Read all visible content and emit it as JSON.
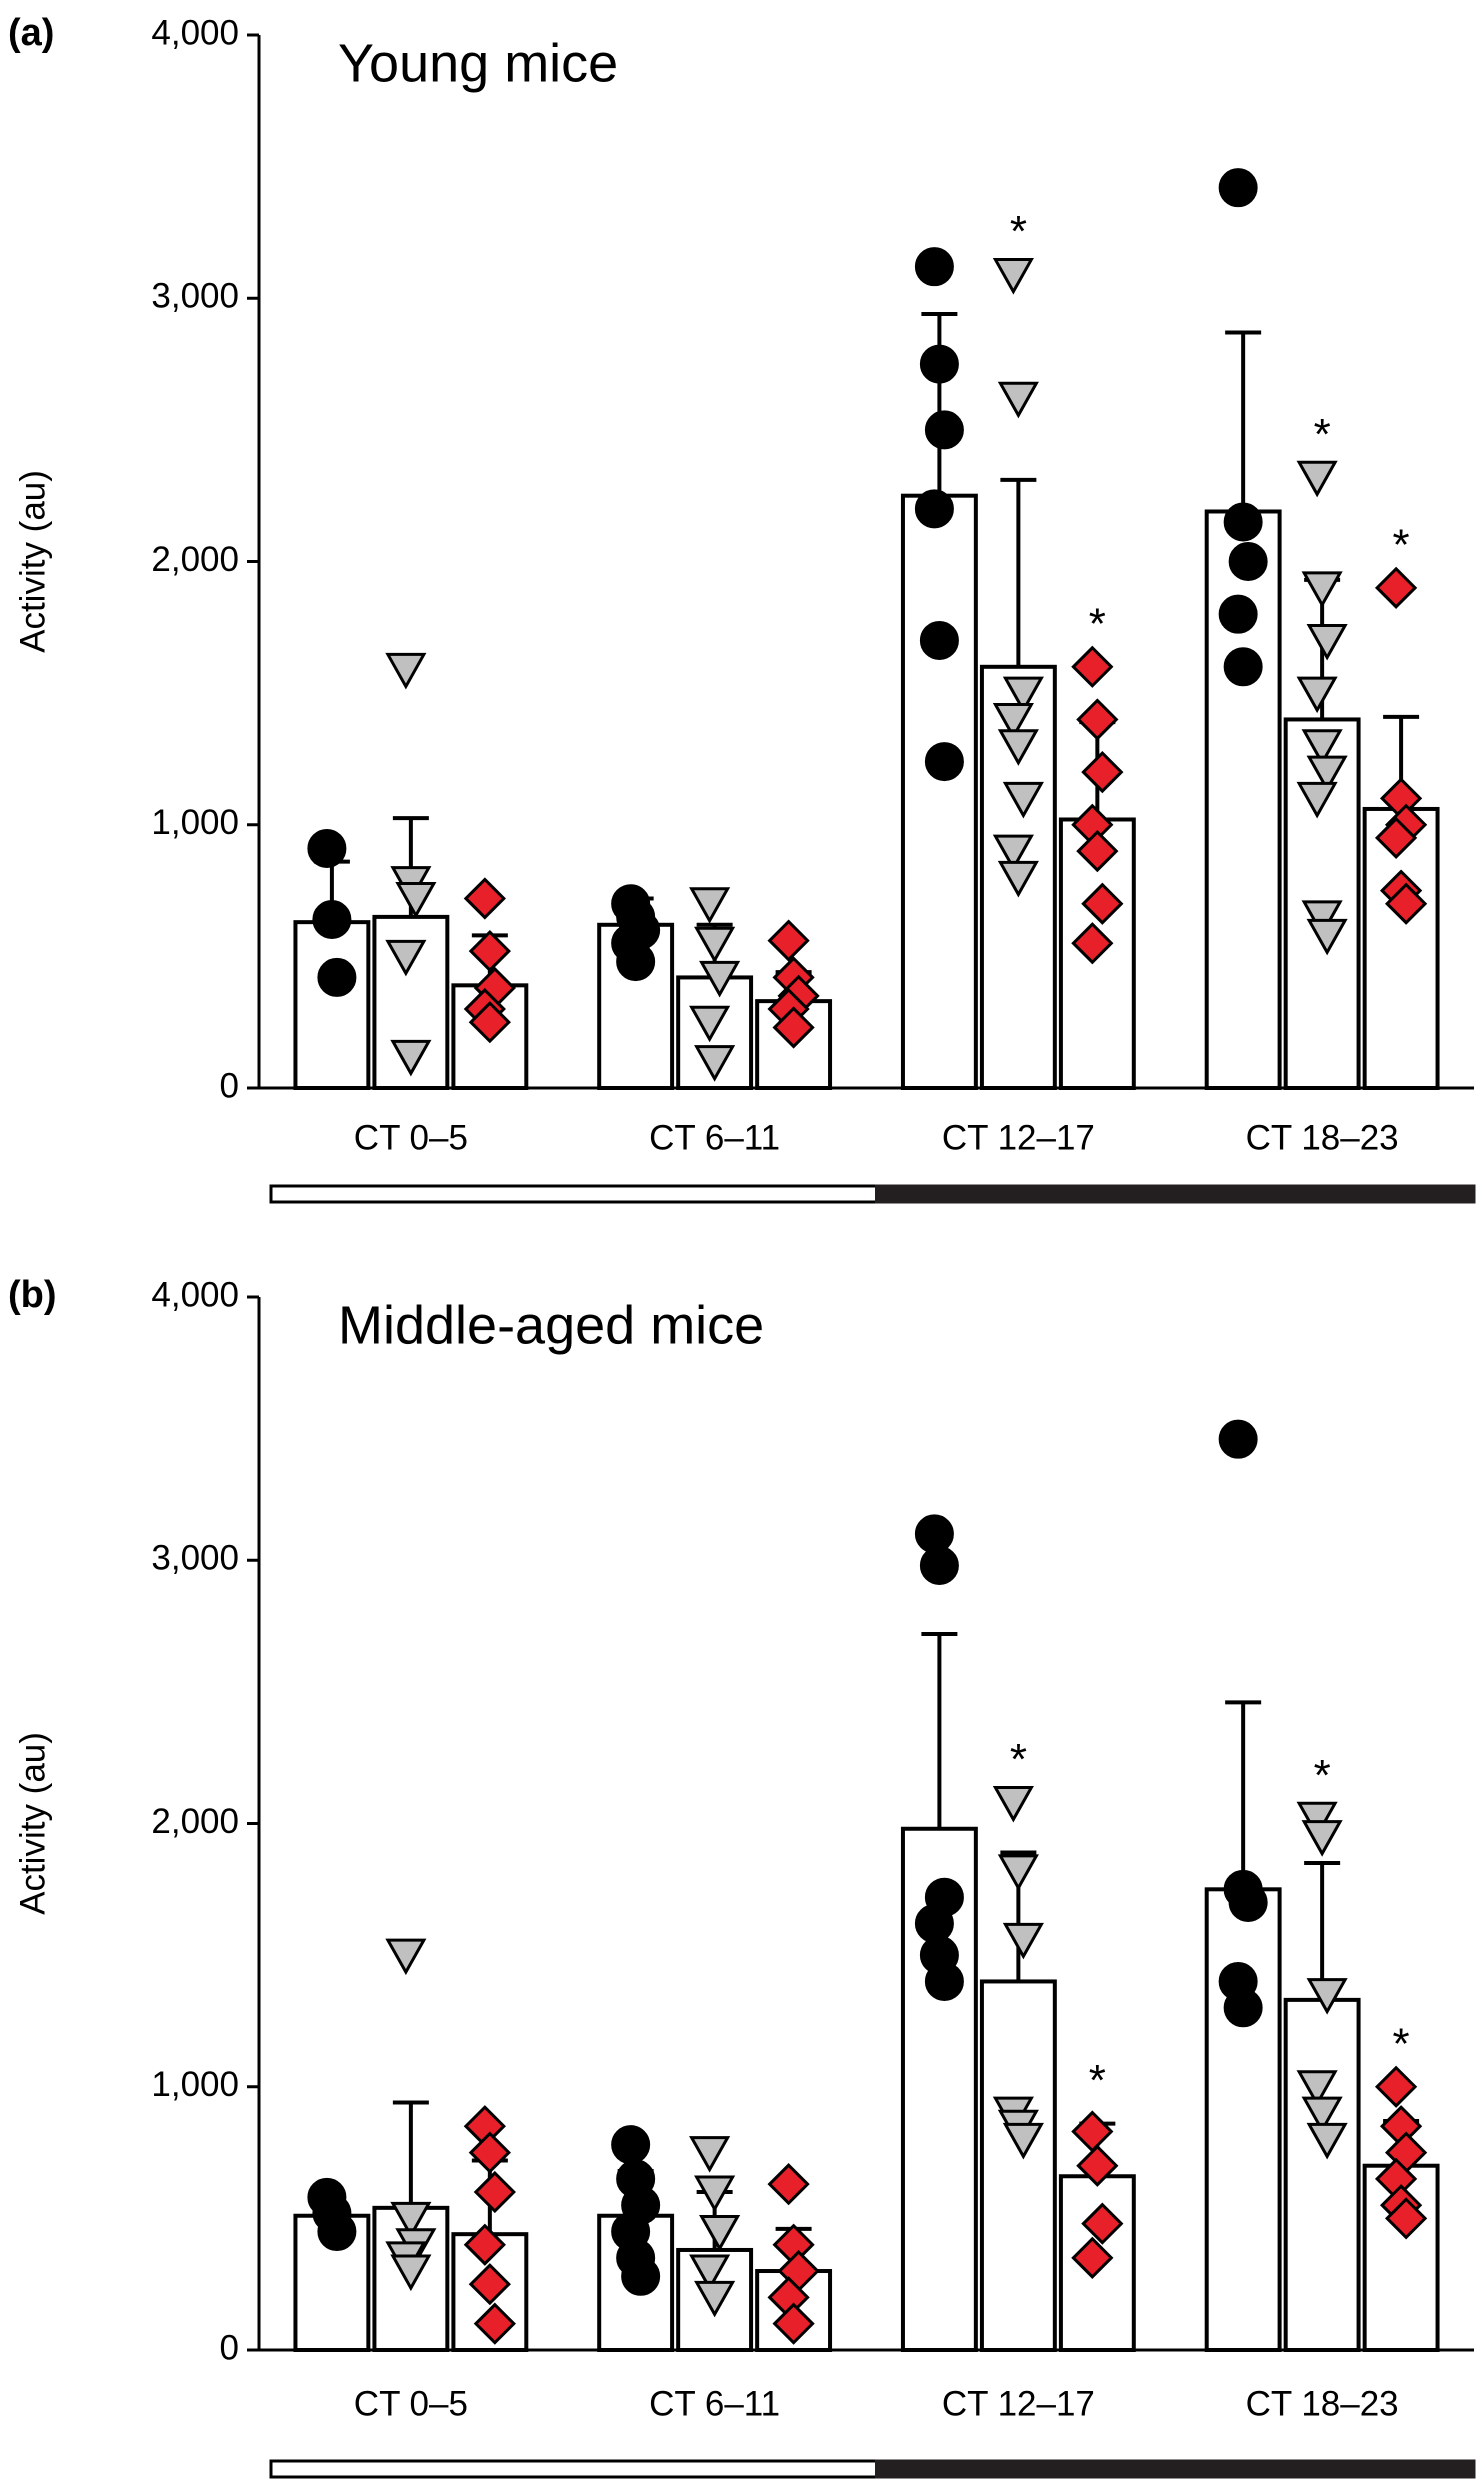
{
  "chart_data": [
    {
      "type": "bar",
      "panel": "(a)",
      "title": "Young mice",
      "ylabel": "Activity (au)",
      "categories": [
        "CT 0–5",
        "CT 6–11",
        "CT 12–17",
        "CT 18–23"
      ],
      "ylim": [
        0,
        4000
      ],
      "yticks": [
        0,
        {
          "value": 1000,
          "label": "1,000"
        },
        {
          "value": 2000,
          "label": "2,000"
        },
        {
          "value": 3000,
          "label": "3,000"
        },
        {
          "value": 4000,
          "label": "4,000"
        }
      ],
      "series": [
        {
          "color": "#000000",
          "marker": "circle",
          "values": [
            630,
            620,
            2250,
            2190
          ],
          "errors": [
            230,
            100,
            690,
            680
          ],
          "points": [
            [
              910,
              640,
              420
            ],
            [
              700,
              650,
              600,
              550,
              480
            ],
            [
              3120,
              2750,
              2500,
              2200,
              1700,
              1240
            ],
            [
              3420,
              2150,
              2000,
              1800,
              1600
            ]
          ],
          "significance": [
            null,
            null,
            null,
            null
          ]
        },
        {
          "color": "#c0c0c0",
          "marker": "triangle",
          "values": [
            650,
            420,
            1600,
            1400
          ],
          "errors": [
            375,
            200,
            710,
            530
          ],
          "points": [
            [
              1590,
              780,
              720,
              500,
              120
            ],
            [
              700,
              550,
              420,
              250,
              100
            ],
            [
              3090,
              2620,
              1500,
              1400,
              1300,
              1100,
              900,
              800
            ],
            [
              2320,
              1900,
              1700,
              1500,
              1300,
              1200,
              1100,
              650,
              580
            ]
          ],
          "significance": [
            null,
            null,
            "*",
            "*"
          ]
        },
        {
          "color": "#e8202a",
          "marker": "diamond",
          "values": [
            390,
            330,
            1020,
            1060
          ],
          "errors": [
            190,
            110,
            370,
            350
          ],
          "points": [
            [
              720,
              520,
              380,
              300,
              250
            ],
            [
              560,
              420,
              350,
              300,
              230
            ],
            [
              1600,
              1400,
              1200,
              1000,
              900,
              700,
              550
            ],
            [
              1900,
              1100,
              1000,
              950,
              750,
              700
            ]
          ],
          "significance": [
            null,
            null,
            "*",
            "*"
          ]
        }
      ]
    },
    {
      "type": "bar",
      "panel": "(b)",
      "title": "Middle-aged mice",
      "ylabel": "Activity (au)",
      "categories": [
        "CT 0–5",
        "CT 6–11",
        "CT 12–17",
        "CT 18–23"
      ],
      "ylim": [
        0,
        4000
      ],
      "yticks": [
        0,
        {
          "value": 1000,
          "label": "1,000"
        },
        {
          "value": 2000,
          "label": "2,000"
        },
        {
          "value": 3000,
          "label": "3,000"
        },
        {
          "value": 4000,
          "label": "4,000"
        }
      ],
      "series": [
        {
          "color": "#000000",
          "marker": "circle",
          "values": [
            510,
            510,
            1980,
            1750
          ],
          "errors": [
            30,
            170,
            740,
            710
          ],
          "points": [
            [
              580,
              520,
              450
            ],
            [
              780,
              650,
              550,
              450,
              350,
              280
            ],
            [
              3100,
              2980,
              1720,
              1620,
              1500,
              1400
            ],
            [
              3460,
              1750,
              1700,
              1400,
              1300
            ]
          ],
          "significance": [
            null,
            null,
            null,
            null
          ]
        },
        {
          "color": "#c0c0c0",
          "marker": "triangle",
          "values": [
            540,
            380,
            1400,
            1330
          ],
          "errors": [
            400,
            220,
            490,
            520
          ],
          "points": [
            [
              1500,
              500,
              400,
              350,
              300
            ],
            [
              750,
              600,
              450,
              300,
              200
            ],
            [
              2080,
              1820,
              1560,
              900,
              850,
              800
            ],
            [
              2020,
              1950,
              1350,
              1000,
              900,
              800
            ]
          ],
          "significance": [
            null,
            null,
            "*",
            "*"
          ]
        },
        {
          "color": "#e8202a",
          "marker": "diamond",
          "values": [
            440,
            300,
            660,
            700
          ],
          "errors": [
            280,
            160,
            200,
            170
          ],
          "points": [
            [
              850,
              750,
              600,
              400,
              250,
              100
            ],
            [
              630,
              400,
              300,
              200,
              100
            ],
            [
              830,
              700,
              480,
              350
            ],
            [
              1000,
              850,
              750,
              650,
              550,
              500
            ]
          ],
          "significance": [
            null,
            null,
            "*",
            "*"
          ]
        }
      ]
    }
  ]
}
